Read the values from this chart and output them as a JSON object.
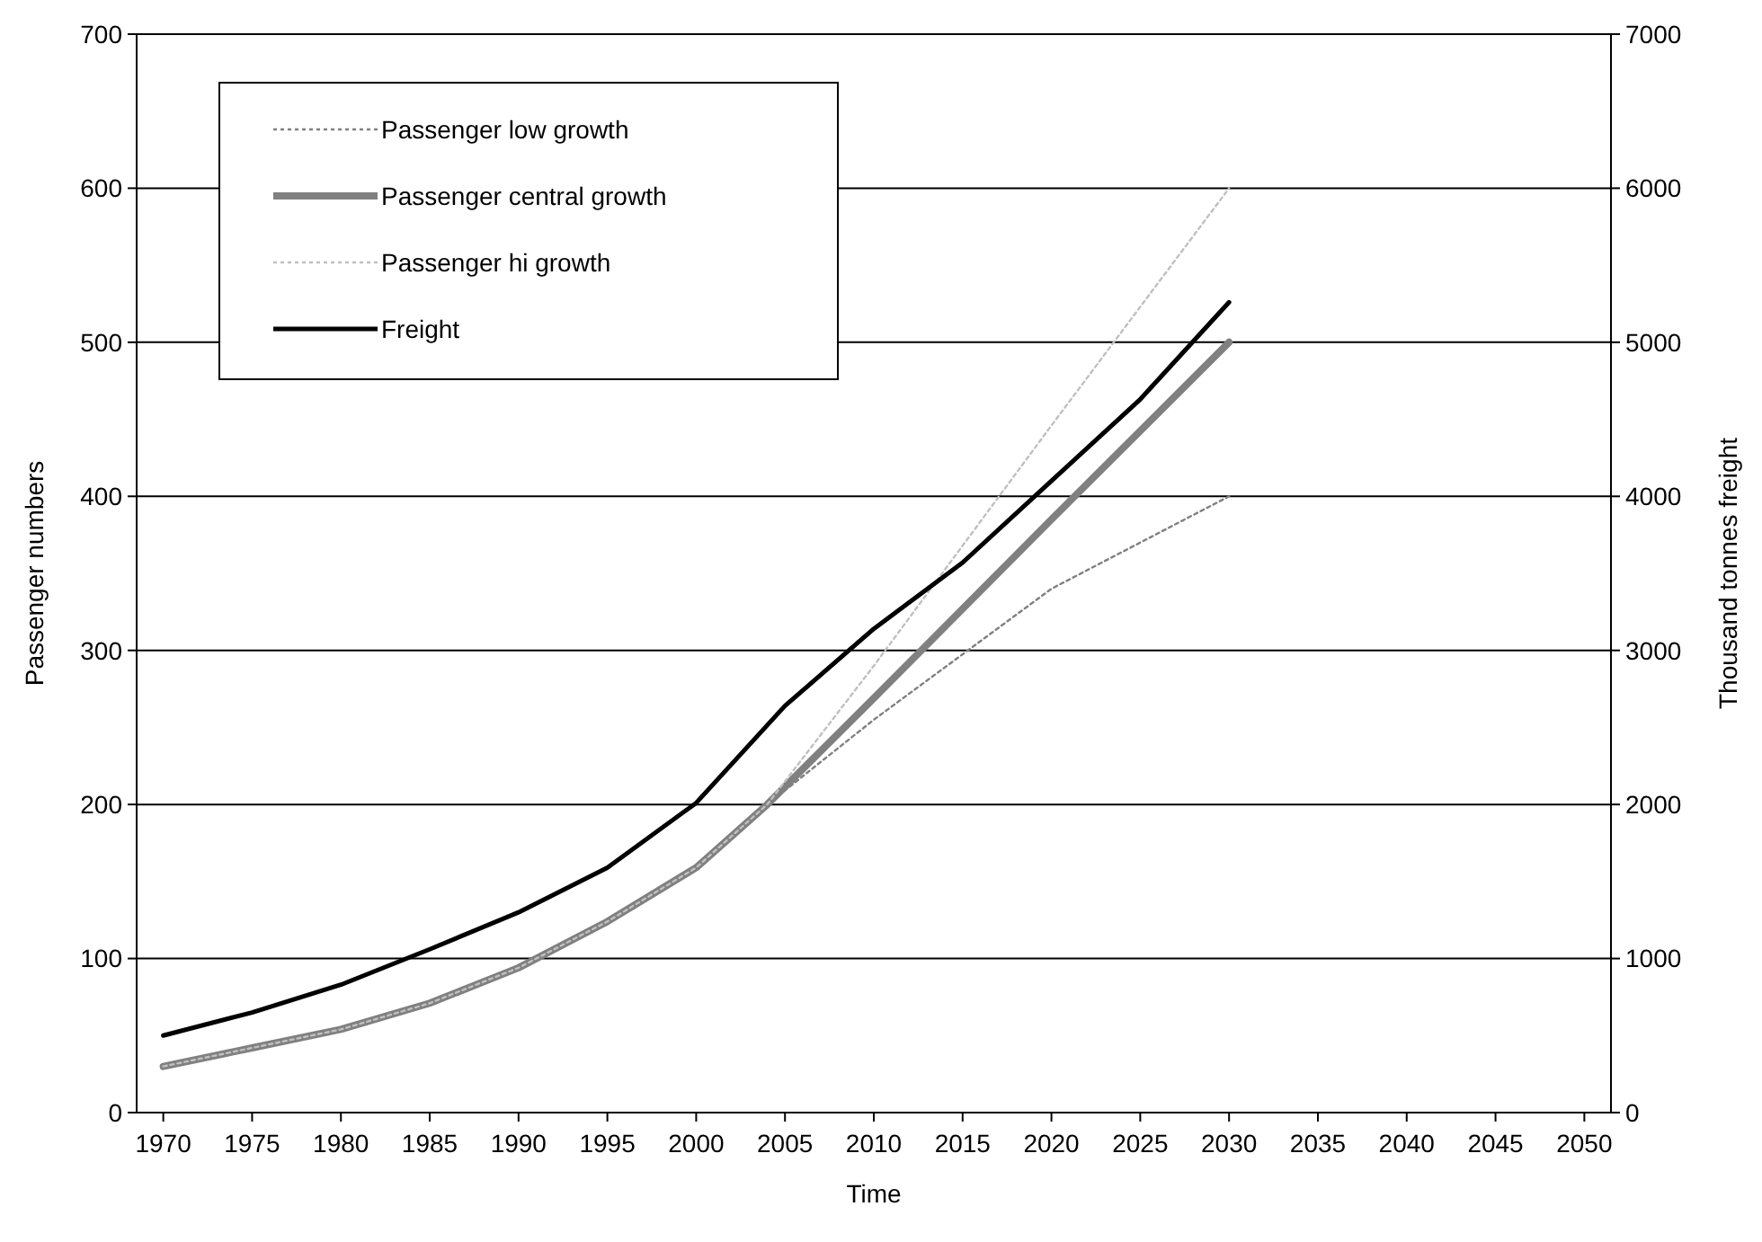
{
  "chart_data": {
    "type": "line",
    "xlabel": "Time",
    "ylabel": "Passenger numbers",
    "y2label": "Thousand tonnes freight",
    "xlim": [
      1968.5,
      2051.5
    ],
    "xticks": [
      1970,
      1975,
      1980,
      1985,
      1990,
      1995,
      2000,
      2005,
      2010,
      2015,
      2020,
      2025,
      2030,
      2035,
      2040,
      2045,
      2050
    ],
    "ylim": [
      0,
      700
    ],
    "yticks": [
      0,
      100,
      200,
      300,
      400,
      500,
      600,
      700
    ],
    "y2lim": [
      0,
      7000
    ],
    "y2ticks": [
      0,
      1000,
      2000,
      3000,
      4000,
      5000,
      6000,
      7000
    ],
    "grid": "y",
    "legend": "top left",
    "series": [
      {
        "name": "Passenger low growth",
        "color": "#808080",
        "line_style": "dotted",
        "x": [
          1970,
          1975,
          1980,
          1985,
          1990,
          1995,
          2000,
          2004,
          2010,
          2020,
          2030
        ],
        "values": [
          30,
          42,
          54,
          71,
          94,
          124,
          159,
          200,
          255,
          340,
          400
        ]
      },
      {
        "name": "Passenger central growth",
        "color": "#808080",
        "line_style": "solid",
        "x": [
          1970,
          1975,
          1980,
          1985,
          1990,
          1995,
          2000,
          2004,
          2010,
          2020,
          2030
        ],
        "values": [
          30,
          42,
          54,
          71,
          94,
          124,
          159,
          200,
          269,
          385,
          500
        ]
      },
      {
        "name": "Passenger hi growth",
        "color": "#c0c0c0",
        "line_style": "dotted",
        "x": [
          1970,
          1975,
          1980,
          1985,
          1990,
          1995,
          2000,
          2004,
          2010,
          2020,
          2030
        ],
        "values": [
          30,
          42,
          54,
          71,
          94,
          124,
          159,
          200,
          290,
          446,
          600
        ]
      },
      {
        "name": "Freight",
        "color": "#000000",
        "line_style": "solid",
        "axis": "y2",
        "x": [
          1970,
          1975,
          1980,
          1985,
          1990,
          1995,
          2000,
          2005,
          2010,
          2015,
          2020,
          2025,
          2030
        ],
        "values": [
          500,
          650,
          830,
          1060,
          1300,
          1590,
          2010,
          2640,
          3140,
          3570,
          4100,
          4630,
          5260
        ]
      }
    ]
  }
}
